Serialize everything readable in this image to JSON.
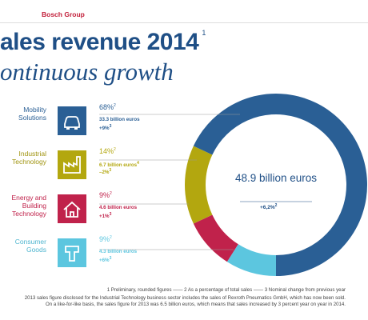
{
  "chart_data": {
    "type": "donut",
    "brand": "Bosch Group",
    "title": "ales revenue 2014",
    "title_note": "1",
    "subtitle": "ontinuous growth",
    "categories": [
      "Mobility Solutions",
      "Industrial Technology",
      "Energy and Building Technology",
      "Consumer Goods"
    ],
    "values": [
      68,
      14,
      9,
      9
    ],
    "value_labels": [
      "68%",
      "14%",
      "9%",
      "9%"
    ],
    "share_note": "2",
    "colors": [
      "#2a5f95",
      "#b3a70f",
      "#c0224b",
      "#5cc6df"
    ],
    "revenues": [
      "33.3 billion euros",
      "6.7 billion euros",
      "4.6 billion euros",
      "4.3 billion euros"
    ],
    "revenue_notes": [
      null,
      "4",
      null,
      null
    ],
    "changes": [
      "+9%",
      "–2%",
      "+1%",
      "+6%"
    ],
    "change_note": "3",
    "center_text": "48.9 billion euros",
    "center_change": "+6,2%",
    "center_change_note": "2",
    "footnotes": [
      "1  Preliminary, rounded figures —— 2  As a percentage of total sales —— 3  Nominal change from previous year",
      "2013 sales figure disclosed for the Industrial Technology business sector includes the sales of Rexroth Pneumatics GmbH, which has now been sold.",
      "On a like-for-like basis, the sales figure for 2013 was 6.5 billion euros, which means that sales increased by 3 percent year on year in 2014."
    ]
  }
}
